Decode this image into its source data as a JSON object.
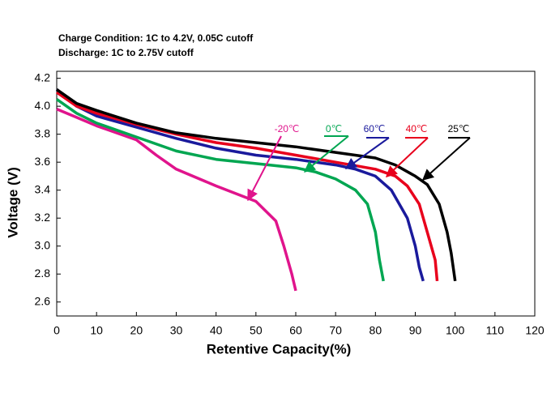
{
  "chart_data": {
    "type": "line",
    "subtitle_lines": [
      "Charge Condition: 1C to 4.2V, 0.05C cutoff",
      "Discharge: 1C to 2.75V cutoff"
    ],
    "x_label": "Retentive Capacity(%)",
    "y_label": "Voltage (V)",
    "xlim": [
      0,
      120
    ],
    "ylim": [
      2.5,
      4.25
    ],
    "xticks": [
      0,
      10,
      20,
      30,
      40,
      50,
      60,
      70,
      80,
      90,
      100,
      110,
      120
    ],
    "yticks": [
      2.6,
      2.8,
      {
        "value": 3,
        "label": "3.0"
      },
      3.2,
      3.4,
      3.6,
      3.8,
      {
        "value": 4,
        "label": "4.0"
      },
      4.2
    ],
    "grid": false,
    "series": [
      {
        "name": "-20℃",
        "color": "#e0148c",
        "x": [
          0,
          5,
          10,
          20,
          25,
          30,
          40,
          50,
          55,
          57,
          59,
          60
        ],
        "values": [
          3.98,
          3.92,
          3.86,
          3.76,
          3.65,
          3.55,
          3.43,
          3.32,
          3.18,
          3.0,
          2.8,
          2.68
        ]
      },
      {
        "name": "0℃",
        "color": "#00a651",
        "x": [
          0,
          5,
          10,
          20,
          30,
          40,
          50,
          60,
          65,
          70,
          75,
          78,
          80,
          81,
          82
        ],
        "values": [
          4.05,
          3.95,
          3.88,
          3.78,
          3.68,
          3.62,
          3.59,
          3.56,
          3.53,
          3.48,
          3.4,
          3.3,
          3.1,
          2.9,
          2.75
        ]
      },
      {
        "name": "60℃",
        "color": "#1a1a9c",
        "x": [
          0,
          5,
          10,
          20,
          30,
          40,
          50,
          60,
          70,
          75,
          80,
          84,
          88,
          90,
          91,
          92
        ],
        "values": [
          4.12,
          4.0,
          3.93,
          3.85,
          3.77,
          3.7,
          3.65,
          3.62,
          3.58,
          3.55,
          3.5,
          3.4,
          3.2,
          3.0,
          2.85,
          2.75
        ]
      },
      {
        "name": "40℃",
        "color": "#e8001c",
        "x": [
          0,
          5,
          10,
          20,
          30,
          40,
          50,
          60,
          70,
          80,
          85,
          88,
          91,
          93,
          95,
          95.5
        ],
        "values": [
          4.1,
          4.0,
          3.95,
          3.87,
          3.8,
          3.74,
          3.7,
          3.65,
          3.6,
          3.55,
          3.5,
          3.43,
          3.3,
          3.1,
          2.9,
          2.75
        ]
      },
      {
        "name": "25℃",
        "color": "#000000",
        "x": [
          0,
          5,
          10,
          20,
          30,
          40,
          50,
          60,
          70,
          80,
          85,
          90,
          93,
          96,
          98,
          99,
          100
        ],
        "values": [
          4.12,
          4.02,
          3.97,
          3.88,
          3.81,
          3.77,
          3.74,
          3.71,
          3.67,
          3.63,
          3.58,
          3.5,
          3.44,
          3.3,
          3.1,
          2.95,
          2.75
        ]
      }
    ]
  }
}
